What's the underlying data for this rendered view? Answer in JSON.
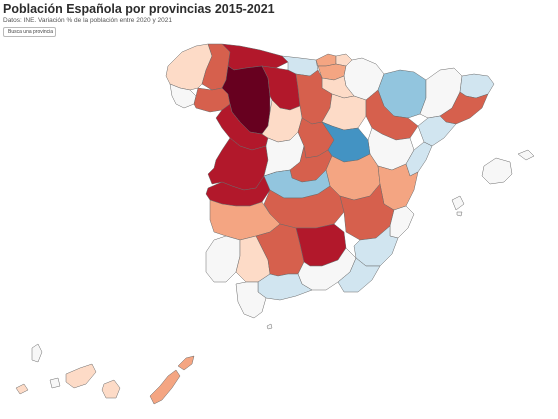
{
  "header": {
    "title": "Población Española por provincias 2015-2021",
    "subtitle": "Datos: INE. Variación % de la población entre 2020 y 2021"
  },
  "search": {
    "label": "Busca una provincia",
    "icon": "search-icon"
  },
  "colors": {
    "dark_red": "#67001f",
    "red": "#b2182b",
    "red_medium": "#d6604d",
    "salmon": "#f4a582",
    "light_salmon": "#fddbc7",
    "neutral": "#f7f7f7",
    "light_blue": "#d1e5f0",
    "blue_medium": "#92c5de",
    "blue": "#4393c3",
    "border": "#6a6a6a"
  }
}
